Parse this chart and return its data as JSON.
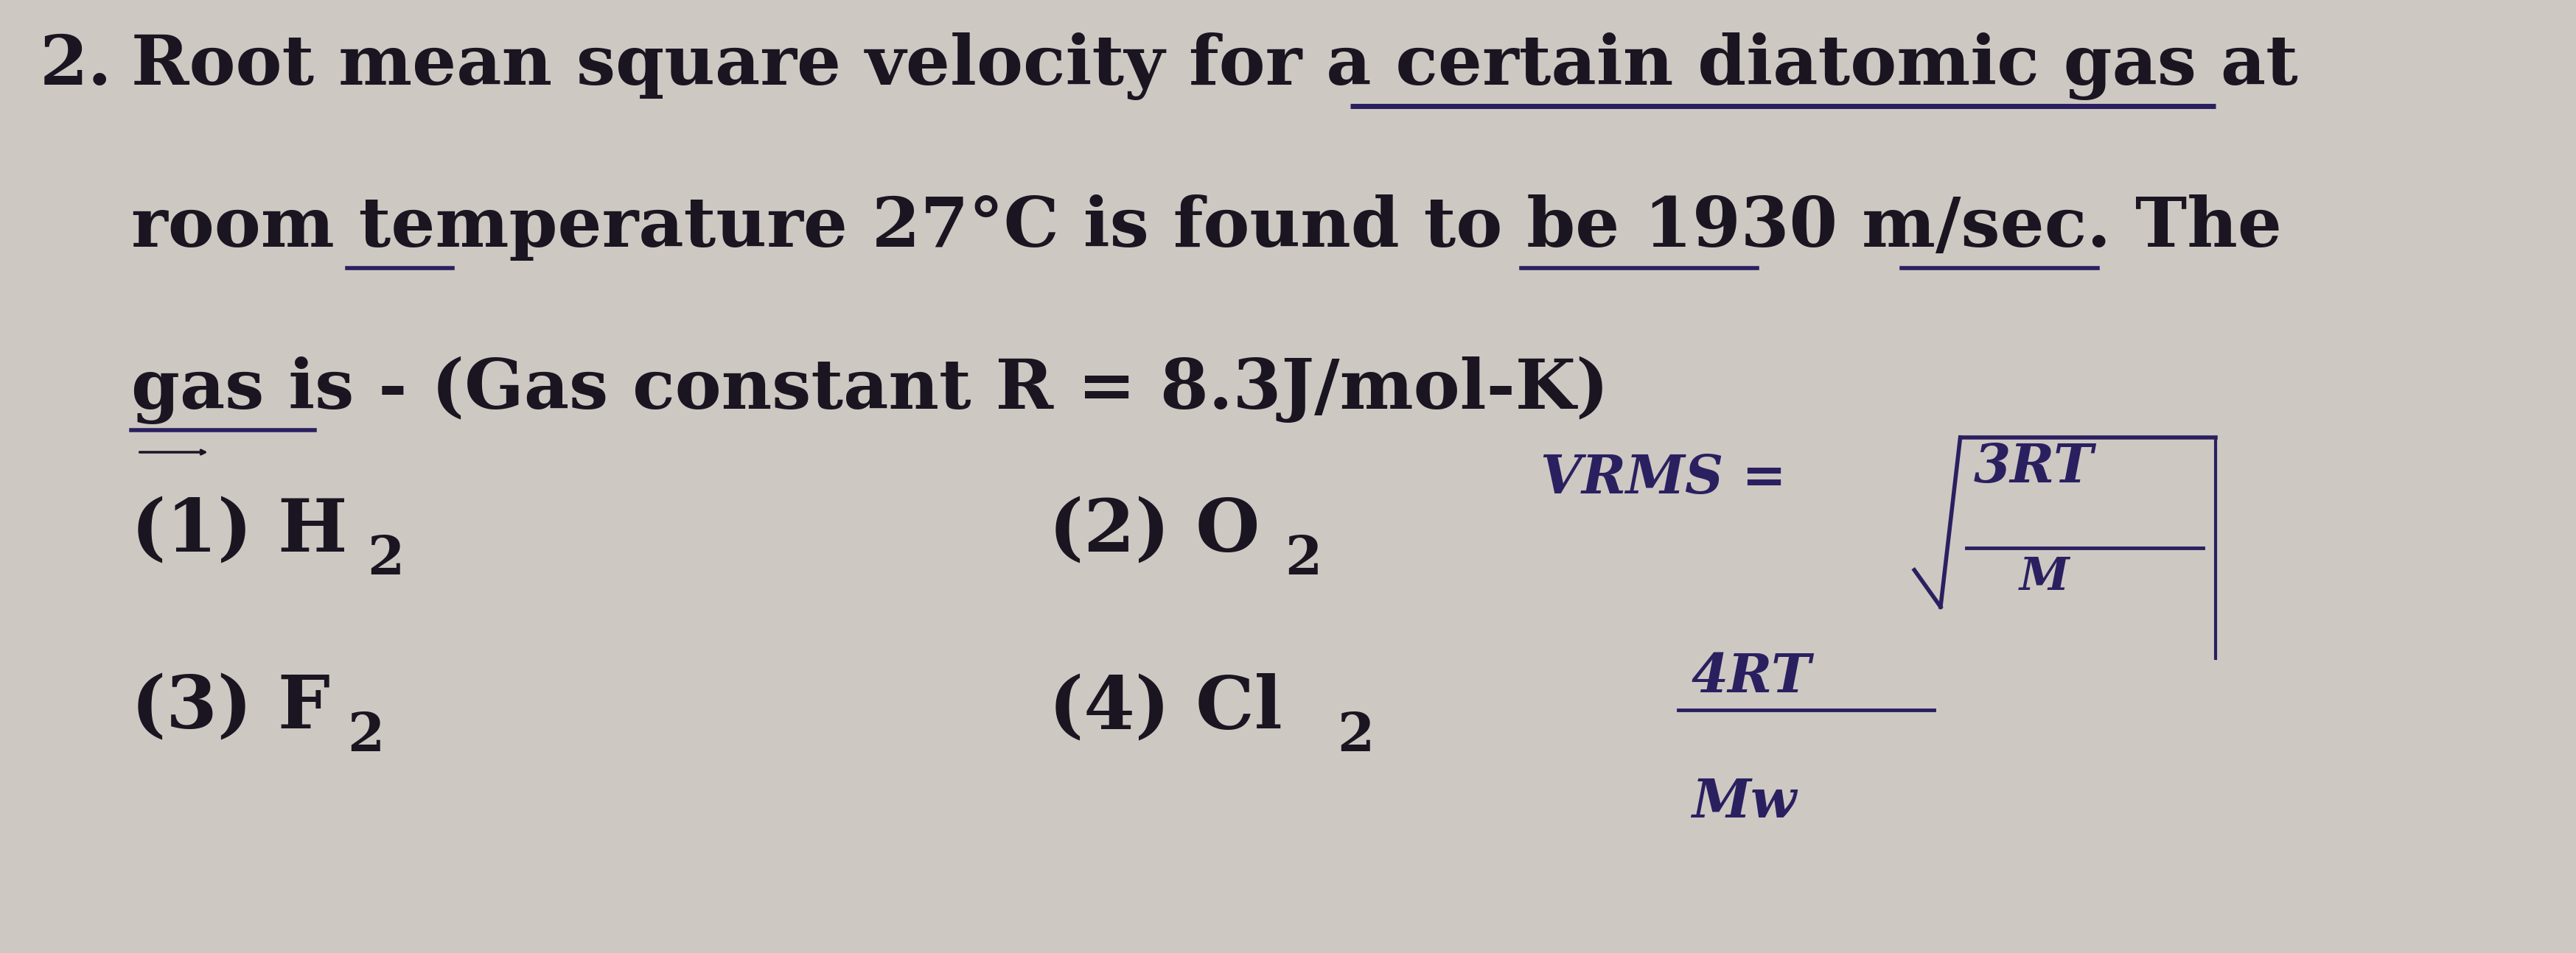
{
  "background_color": "#cdc8c2",
  "text_color": "#1a1520",
  "ink_color": "#2a2060",
  "question_number": "2.",
  "line1": "Root mean square velocity for a certain diatomic gas at",
  "line2": "room temperature 27°C is found to be 1930 m/sec. The",
  "line3": "gas is - (Gas constant R = 8.3J/mol-K)",
  "opt1_main": "(1) H",
  "opt1_sub": "2",
  "opt2_main": "(2) O",
  "opt2_sub": "2",
  "opt3_main": "(3) F",
  "opt3_sub": "2",
  "opt4_main": "(4) Cl",
  "opt4_sub": "2",
  "vrms_text": "VRMS =",
  "sqrt_num": "3RT",
  "sqrt_den": "M",
  "frac2_num": "4RT",
  "frac2_den": "Mw",
  "underline_color": "#2a2060",
  "font_size_main": 68,
  "font_size_options": 72,
  "font_size_subscript": 52,
  "font_size_formula": 52,
  "fig_width": 34.95,
  "fig_height": 12.94
}
